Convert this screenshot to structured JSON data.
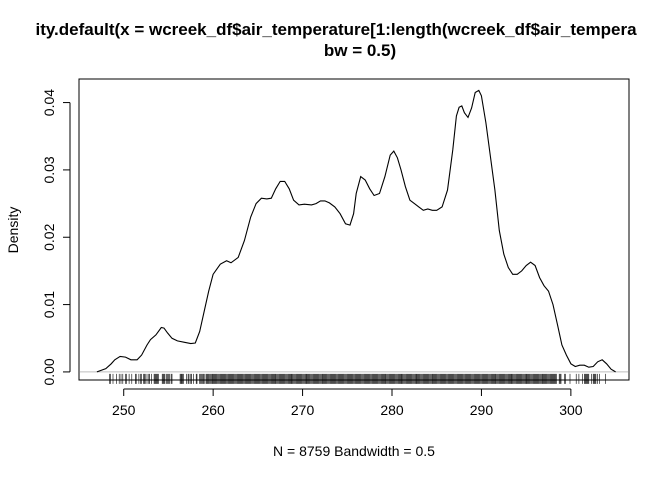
{
  "chart_data": {
    "type": "line",
    "title_line1": "ity.default(x = wcreek_df$air_temperature[1:length(wcreek_df$air_tempera",
    "title_line2": "bw = 0.5)",
    "xlabel": "N = 8759   Bandwidth = 0.5",
    "ylabel": "Density",
    "xlim": [
      245,
      306.5
    ],
    "ylim": [
      -0.0012,
      0.0435
    ],
    "x_ticks": [
      250,
      260,
      270,
      280,
      290,
      300
    ],
    "x_tick_labels": [
      "250",
      "260",
      "270",
      "280",
      "290",
      "300"
    ],
    "y_ticks": [
      0.0,
      0.01,
      0.02,
      0.03,
      0.04
    ],
    "y_tick_labels": [
      "0.00",
      "0.01",
      "0.02",
      "0.03",
      "0.04"
    ],
    "grid": false,
    "legend": "none",
    "zero_line": true,
    "rug": true,
    "rug_range": [
      248.2,
      304.0
    ],
    "series": [
      {
        "x": [
          247.0,
          248.0,
          248.6,
          249.0,
          249.6,
          250.2,
          250.8,
          251.5,
          252.0,
          252.6,
          253.0,
          253.6,
          254.2,
          254.5,
          254.9,
          255.4,
          256.0,
          256.8,
          257.5,
          258.0,
          258.5,
          259.0,
          259.5,
          260.0,
          260.8,
          261.5,
          262.0,
          262.8,
          263.5,
          264.2,
          264.8,
          265.4,
          266.0,
          266.5,
          267.0,
          267.5,
          268.0,
          268.5,
          269.0,
          269.6,
          270.2,
          271.0,
          271.5,
          272.0,
          272.5,
          273.0,
          273.6,
          274.2,
          274.8,
          275.3,
          275.7,
          276.0,
          276.5,
          277.0,
          277.5,
          278.0,
          278.6,
          279.2,
          279.8,
          280.2,
          280.6,
          281.0,
          281.5,
          282.0,
          282.5,
          283.0,
          283.5,
          284.0,
          284.5,
          285.0,
          285.6,
          286.2,
          286.8,
          287.2,
          287.5,
          287.8,
          288.1,
          288.5,
          288.9,
          289.3,
          289.7,
          290.0,
          290.5,
          291.0,
          291.5,
          292.0,
          292.5,
          293.0,
          293.5,
          294.0,
          294.5,
          295.0,
          295.5,
          296.0,
          296.5,
          297.0,
          297.5,
          298.0,
          298.5,
          299.0,
          299.5,
          300.0,
          300.5,
          301.0,
          301.5,
          302.0,
          302.5,
          303.0,
          303.5,
          304.0,
          304.5,
          305.0
        ],
        "y": [
          0.0,
          0.0005,
          0.0012,
          0.0018,
          0.0023,
          0.0022,
          0.0018,
          0.0018,
          0.0025,
          0.004,
          0.0048,
          0.0055,
          0.0066,
          0.0065,
          0.0058,
          0.005,
          0.0046,
          0.0044,
          0.0042,
          0.0043,
          0.006,
          0.009,
          0.012,
          0.0145,
          0.016,
          0.0165,
          0.0162,
          0.017,
          0.0195,
          0.023,
          0.025,
          0.0258,
          0.0257,
          0.0258,
          0.0272,
          0.0283,
          0.0283,
          0.0272,
          0.0255,
          0.0248,
          0.0249,
          0.0248,
          0.025,
          0.0254,
          0.0254,
          0.0251,
          0.0245,
          0.0235,
          0.022,
          0.0218,
          0.0235,
          0.0265,
          0.029,
          0.0285,
          0.0272,
          0.0262,
          0.0265,
          0.029,
          0.0322,
          0.0328,
          0.0318,
          0.03,
          0.0275,
          0.0255,
          0.025,
          0.0245,
          0.024,
          0.0242,
          0.024,
          0.024,
          0.0245,
          0.027,
          0.033,
          0.038,
          0.0393,
          0.0395,
          0.0385,
          0.0378,
          0.0392,
          0.0415,
          0.0418,
          0.041,
          0.037,
          0.032,
          0.027,
          0.021,
          0.0175,
          0.0155,
          0.0145,
          0.0145,
          0.015,
          0.0158,
          0.0163,
          0.0158,
          0.014,
          0.0128,
          0.012,
          0.01,
          0.007,
          0.004,
          0.0025,
          0.0012,
          0.0008,
          0.001,
          0.001,
          0.0007,
          0.0008,
          0.0015,
          0.0018,
          0.0012,
          0.0004,
          0.0
        ]
      }
    ]
  }
}
